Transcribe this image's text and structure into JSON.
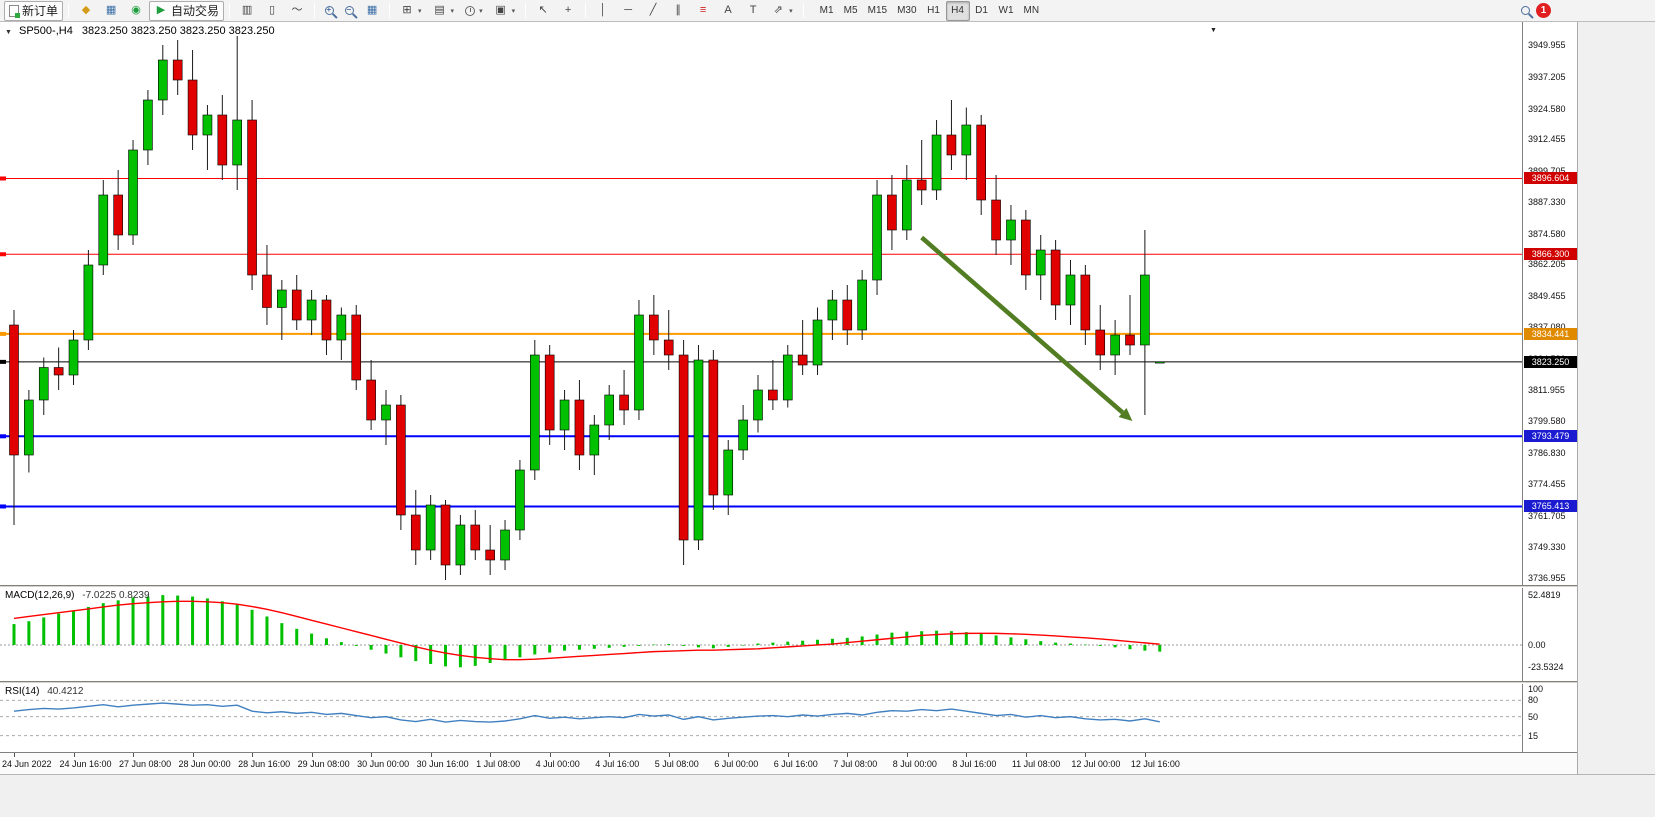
{
  "icons": {
    "metaeditor": "◆",
    "market_watch": "▦",
    "navigator": "◉",
    "autotrade_play": "▶",
    "bar_chart": "▥",
    "candle_chart": "▯",
    "line_chart": "～",
    "tile_windows": "▦",
    "new_chart": "⊞",
    "profiles": "▤",
    "snapshot": "▣",
    "cursor": "↖",
    "crosshair": "+",
    "vline": "│",
    "hline": "─",
    "trendline": "╱",
    "channel": "∥",
    "fibonacci": "≡",
    "text_tool": "A",
    "label_tool": "T",
    "arrow_tool": "⇗",
    "caret": "▾",
    "collapse": "▼",
    "subwindow": "▼"
  },
  "toolbar": {
    "new_order_label": "新订单",
    "autotrade_label": "自动交易",
    "timeframes": [
      "M1",
      "M5",
      "M15",
      "M30",
      "H1",
      "H4",
      "D1",
      "W1",
      "MN"
    ],
    "active_timeframe": "H4",
    "notification_count": "1"
  },
  "chart": {
    "symbol_period": "SP500-,H4",
    "ohlc_text": "3823.250 3823.250 3823.250 3823.250"
  },
  "chart_data": {
    "type": "candlestick",
    "symbol": "SP500-",
    "period": "H4",
    "colors": {
      "bull": "#00c000",
      "bear": "#e00000",
      "wick": "#1a1a1a",
      "macd_hist": "#00c000",
      "macd_signal": "#ff0000",
      "rsi_line": "#4080c0",
      "arrow": "#527d22"
    },
    "candles": [
      [
        3838,
        3844,
        3758,
        3786
      ],
      [
        3786,
        3812,
        3779,
        3808
      ],
      [
        3808,
        3825,
        3802,
        3821
      ],
      [
        3821,
        3829,
        3812,
        3818
      ],
      [
        3818,
        3836,
        3814,
        3832
      ],
      [
        3832,
        3868,
        3828,
        3862
      ],
      [
        3862,
        3896,
        3858,
        3890
      ],
      [
        3890,
        3900,
        3868,
        3874
      ],
      [
        3874,
        3912,
        3870,
        3908
      ],
      [
        3908,
        3932,
        3902,
        3928
      ],
      [
        3928,
        3950,
        3922,
        3944
      ],
      [
        3944,
        3952,
        3930,
        3936
      ],
      [
        3936,
        3948,
        3908,
        3914
      ],
      [
        3914,
        3926,
        3900,
        3922
      ],
      [
        3922,
        3930,
        3896,
        3902
      ],
      [
        3902,
        3955,
        3892,
        3920
      ],
      [
        3920,
        3928,
        3852,
        3858
      ],
      [
        3858,
        3870,
        3838,
        3845
      ],
      [
        3845,
        3856,
        3832,
        3852
      ],
      [
        3852,
        3858,
        3836,
        3840
      ],
      [
        3840,
        3852,
        3834,
        3848
      ],
      [
        3848,
        3850,
        3826,
        3832
      ],
      [
        3832,
        3845,
        3824,
        3842
      ],
      [
        3842,
        3846,
        3812,
        3816
      ],
      [
        3816,
        3824,
        3796,
        3800
      ],
      [
        3800,
        3812,
        3790,
        3806
      ],
      [
        3806,
        3810,
        3756,
        3762
      ],
      [
        3762,
        3772,
        3742,
        3748
      ],
      [
        3748,
        3770,
        3744,
        3766
      ],
      [
        3766,
        3768,
        3736,
        3742
      ],
      [
        3742,
        3762,
        3738,
        3758
      ],
      [
        3758,
        3764,
        3744,
        3748
      ],
      [
        3748,
        3758,
        3738,
        3744
      ],
      [
        3744,
        3760,
        3740,
        3756
      ],
      [
        3756,
        3784,
        3752,
        3780
      ],
      [
        3780,
        3832,
        3776,
        3826
      ],
      [
        3826,
        3830,
        3790,
        3796
      ],
      [
        3796,
        3812,
        3788,
        3808
      ],
      [
        3808,
        3816,
        3780,
        3786
      ],
      [
        3786,
        3802,
        3778,
        3798
      ],
      [
        3798,
        3814,
        3792,
        3810
      ],
      [
        3810,
        3820,
        3798,
        3804
      ],
      [
        3804,
        3848,
        3800,
        3842
      ],
      [
        3842,
        3850,
        3826,
        3832
      ],
      [
        3832,
        3844,
        3820,
        3826
      ],
      [
        3826,
        3832,
        3742,
        3752
      ],
      [
        3752,
        3830,
        3748,
        3824
      ],
      [
        3824,
        3828,
        3764,
        3770
      ],
      [
        3770,
        3792,
        3762,
        3788
      ],
      [
        3788,
        3806,
        3784,
        3800
      ],
      [
        3800,
        3818,
        3795,
        3812
      ],
      [
        3812,
        3824,
        3804,
        3808
      ],
      [
        3808,
        3830,
        3805,
        3826
      ],
      [
        3826,
        3840,
        3818,
        3822
      ],
      [
        3822,
        3845,
        3818,
        3840
      ],
      [
        3840,
        3852,
        3832,
        3848
      ],
      [
        3848,
        3854,
        3830,
        3836
      ],
      [
        3836,
        3860,
        3832,
        3856
      ],
      [
        3856,
        3896,
        3850,
        3890
      ],
      [
        3890,
        3898,
        3868,
        3876
      ],
      [
        3876,
        3902,
        3872,
        3896
      ],
      [
        3896,
        3912,
        3886,
        3892
      ],
      [
        3892,
        3920,
        3888,
        3914
      ],
      [
        3914,
        3928,
        3900,
        3906
      ],
      [
        3906,
        3925,
        3896,
        3918
      ],
      [
        3918,
        3922,
        3882,
        3888
      ],
      [
        3888,
        3898,
        3866,
        3872
      ],
      [
        3872,
        3886,
        3862,
        3880
      ],
      [
        3880,
        3884,
        3852,
        3858
      ],
      [
        3858,
        3874,
        3848,
        3868
      ],
      [
        3868,
        3872,
        3840,
        3846
      ],
      [
        3846,
        3864,
        3838,
        3858
      ],
      [
        3858,
        3862,
        3830,
        3836
      ],
      [
        3836,
        3846,
        3820,
        3826
      ],
      [
        3826,
        3840,
        3818,
        3834
      ],
      [
        3834,
        3850,
        3826,
        3830
      ],
      [
        3830,
        3876,
        3802,
        3858
      ],
      [
        3823.25,
        3823.25,
        3823.25,
        3823.25
      ]
    ],
    "time_labels": [
      {
        "index": 0,
        "label": "24 Jun 2022"
      },
      {
        "index": 4,
        "label": "24 Jun 16:00"
      },
      {
        "index": 8,
        "label": "27 Jun 08:00"
      },
      {
        "index": 12,
        "label": "28 Jun 00:00"
      },
      {
        "index": 16,
        "label": "28 Jun 16:00"
      },
      {
        "index": 20,
        "label": "29 Jun 08:00"
      },
      {
        "index": 24,
        "label": "30 Jun 00:00"
      },
      {
        "index": 28,
        "label": "30 Jun 16:00"
      },
      {
        "index": 32,
        "label": "1 Jul 08:00"
      },
      {
        "index": 36,
        "label": "4 Jul 00:00"
      },
      {
        "index": 40,
        "label": "4 Jul 16:00"
      },
      {
        "index": 44,
        "label": "5 Jul 08:00"
      },
      {
        "index": 48,
        "label": "6 Jul 00:00"
      },
      {
        "index": 52,
        "label": "6 Jul 16:00"
      },
      {
        "index": 56,
        "label": "7 Jul 08:00"
      },
      {
        "index": 60,
        "label": "8 Jul 00:00"
      },
      {
        "index": 64,
        "label": "8 Jul 16:00"
      },
      {
        "index": 68,
        "label": "11 Jul 08:00"
      },
      {
        "index": 72,
        "label": "12 Jul 00:00"
      },
      {
        "index": 76,
        "label": "12 Jul 16:00"
      }
    ],
    "price_axis_ticks": [
      "3949.955",
      "3937.205",
      "3924.580",
      "3912.455",
      "3899.705",
      "3887.330",
      "3874.580",
      "3862.205",
      "3849.455",
      "3837.080",
      "3824.580",
      "3811.955",
      "3799.580",
      "3786.830",
      "3774.455",
      "3761.705",
      "3749.330",
      "3736.955"
    ],
    "hlines": [
      {
        "price": 3896.604,
        "badge_label": "3896.604",
        "color": "#ff0000",
        "badge_bg": "#d00000",
        "width": 1
      },
      {
        "price": 3866.3,
        "badge_label": "3866.300",
        "color": "#ff0000",
        "badge_bg": "#d00000",
        "width": 1
      },
      {
        "price": 3834.441,
        "badge_label": "3834.441",
        "color": "#ff9900",
        "badge_bg": "#e08a00",
        "width": 2
      },
      {
        "price": 3823.25,
        "badge_label": "3823.250",
        "color": "#000000",
        "badge_bg": "#000000",
        "width": 1
      },
      {
        "price": 3793.479,
        "badge_label": "3793.479",
        "color": "#0000ff",
        "badge_bg": "#1a1ad0",
        "width": 2
      },
      {
        "price": 3765.413,
        "badge_label": "3765.413",
        "color": "#0000ff",
        "badge_bg": "#1a1ad0",
        "width": 2
      }
    ],
    "current_price": 3823.25,
    "trend_arrow": {
      "from_index": 61,
      "from_price": 3873,
      "to_index": 74.5,
      "to_price": 3803,
      "color": "#527d22"
    },
    "indicators": [
      {
        "name": "MACD",
        "label": "MACD(12,26,9)",
        "values_text": "-7.0225 0.8239",
        "axis_ticks": [
          "52.4819",
          "0.00",
          "-23.5324"
        ],
        "histogram": [
          22,
          25,
          29,
          33,
          36,
          40,
          44,
          47,
          50,
          51,
          52.5,
          52,
          51,
          49,
          46,
          43,
          37,
          30,
          23,
          17,
          12,
          7,
          3,
          -1,
          -5,
          -9,
          -13,
          -17,
          -20,
          -22.5,
          -23.5,
          -22,
          -19,
          -16,
          -13,
          -10,
          -8,
          -6,
          -5,
          -4,
          -3,
          -2,
          -1,
          0.5,
          1,
          -1,
          -2.5,
          -3.5,
          -2,
          0,
          1.5,
          2.5,
          3.5,
          4.5,
          5.5,
          6.5,
          7.5,
          9,
          11,
          13,
          14,
          14.5,
          15,
          14.5,
          13.5,
          12,
          10,
          8,
          6,
          4,
          2.5,
          1.5,
          0.5,
          -1,
          -2.5,
          -4.5,
          -6,
          -7
        ],
        "signal": [
          28,
          30,
          32,
          34,
          36,
          38,
          40,
          42,
          43.5,
          44.5,
          45.5,
          46,
          46,
          45.5,
          44.5,
          43,
          40.5,
          37.5,
          34,
          30,
          26,
          22,
          18,
          14,
          10,
          6,
          2,
          -2,
          -5.5,
          -8.5,
          -11,
          -13,
          -14.5,
          -15.5,
          -15.5,
          -15,
          -14,
          -13,
          -12,
          -11,
          -10,
          -9,
          -8,
          -7,
          -6.5,
          -6,
          -5.5,
          -5.5,
          -5,
          -4.5,
          -4,
          -3,
          -2,
          -1,
          0,
          1,
          2.5,
          4,
          5.5,
          7,
          8.5,
          10,
          11,
          11.8,
          12.2,
          12.3,
          12.2,
          11.8,
          11.2,
          10.4,
          9.5,
          8.5,
          7.5,
          6.3,
          5,
          3.6,
          2.2,
          0.8
        ]
      },
      {
        "name": "RSI",
        "label": "RSI(14)",
        "values_text": "40.4212",
        "axis_ticks": [
          "100",
          "80",
          "50",
          "15"
        ],
        "levels": [
          80,
          50,
          15
        ],
        "values": [
          60,
          63,
          65,
          64,
          66,
          69,
          72,
          68,
          71,
          73,
          75,
          73,
          71,
          72,
          69,
          71,
          60,
          57,
          59,
          56,
          58,
          54,
          56,
          52,
          48,
          50,
          44,
          41,
          45,
          40,
          43,
          41,
          40,
          42,
          46,
          52,
          47,
          49,
          46,
          48,
          50,
          48,
          54,
          51,
          53,
          45,
          50,
          44,
          47,
          49,
          51,
          52,
          50,
          53,
          51,
          54,
          56,
          53,
          58,
          61,
          60,
          63,
          61,
          64,
          60,
          56,
          52,
          54,
          49,
          52,
          48,
          50,
          46,
          44,
          45,
          42,
          46,
          40.4
        ]
      }
    ]
  }
}
